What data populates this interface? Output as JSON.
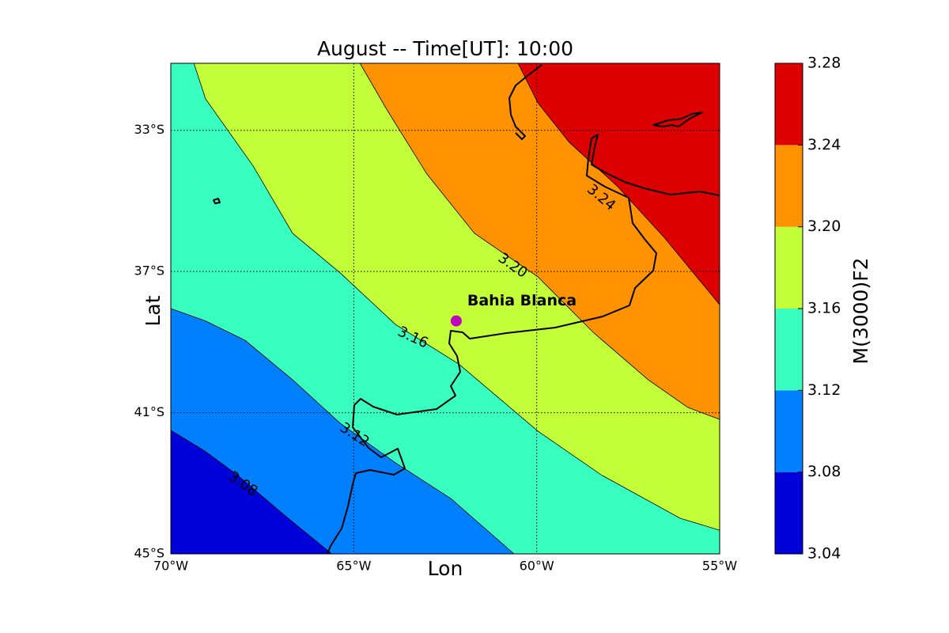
{
  "chart_data": {
    "type": "contour",
    "title": "August -- Time[UT]: 10:00",
    "x_label": "Lon",
    "y_label": "Lat",
    "xlim": [
      -70,
      -55
    ],
    "ylim": [
      -45,
      -31.1
    ],
    "xticks": [
      {
        "value": -70,
        "label": "70°W"
      },
      {
        "value": -65,
        "label": "65°W"
      },
      {
        "value": -60,
        "label": "60°W"
      },
      {
        "value": -55,
        "label": "55°W"
      }
    ],
    "yticks": [
      {
        "value": -45,
        "label": "45°S"
      },
      {
        "value": -41,
        "label": "41°S"
      },
      {
        "value": -37,
        "label": "37°S"
      },
      {
        "value": -33,
        "label": "33°S"
      }
    ],
    "grid": true,
    "contours": {
      "levels": [
        3.08,
        3.12,
        3.16,
        3.2,
        3.24
      ],
      "value_labels": [
        "3.08",
        "3.12",
        "3.16",
        "3.20",
        "3.24"
      ],
      "lines": [
        [
          [
            -70,
            -41.5
          ],
          [
            -69.05,
            -42.1
          ],
          [
            -68.2,
            -42.75
          ],
          [
            -66.9,
            -43.9
          ],
          [
            -65.6,
            -45
          ]
        ],
        [
          [
            -70,
            -38.05
          ],
          [
            -69.05,
            -38.4
          ],
          [
            -67.97,
            -38.95
          ],
          [
            -66.67,
            -40.07
          ],
          [
            -65.37,
            -41.3
          ],
          [
            -63.86,
            -42.42
          ],
          [
            -62.35,
            -43.43
          ],
          [
            -60.62,
            -45
          ]
        ],
        [
          [
            -69.37,
            -31.1
          ],
          [
            -69.05,
            -32.11
          ],
          [
            -67.75,
            -34.01
          ],
          [
            -66.67,
            -35.92
          ],
          [
            -65.37,
            -37.04
          ],
          [
            -63.86,
            -38.5
          ],
          [
            -62.13,
            -39.62
          ],
          [
            -59.97,
            -41.52
          ],
          [
            -58.24,
            -42.76
          ],
          [
            -56.08,
            -43.99
          ],
          [
            -55,
            -44.33
          ]
        ],
        [
          [
            -64.83,
            -31.1
          ],
          [
            -64.08,
            -32.44
          ],
          [
            -63.0,
            -34.24
          ],
          [
            -61.7,
            -35.92
          ],
          [
            -59.97,
            -37.15
          ],
          [
            -58.46,
            -38.72
          ],
          [
            -56.95,
            -40.07
          ],
          [
            -55.87,
            -40.85
          ],
          [
            -55,
            -41.19
          ]
        ],
        [
          [
            -60.51,
            -31.1
          ],
          [
            -59.97,
            -32.22
          ],
          [
            -59.11,
            -33.34
          ],
          [
            -57.81,
            -34.57
          ],
          [
            -56.52,
            -36.03
          ],
          [
            -55,
            -37.94
          ]
        ]
      ]
    },
    "marker": {
      "name": "Bahia Blanca",
      "lon": -62.2,
      "lat": -38.4,
      "color": "#c000c0"
    },
    "colorbar": {
      "label": "M(3000)F2",
      "ticks": [
        3.04,
        3.08,
        3.12,
        3.16,
        {
          "value": 3.2,
          "label": "3.20"
        },
        3.24,
        3.28
      ],
      "colors": [
        "#0000d8",
        "#0080ff",
        "#38ffc0",
        "#c2ff38",
        "#ff9200",
        "#dd0000"
      ]
    }
  }
}
